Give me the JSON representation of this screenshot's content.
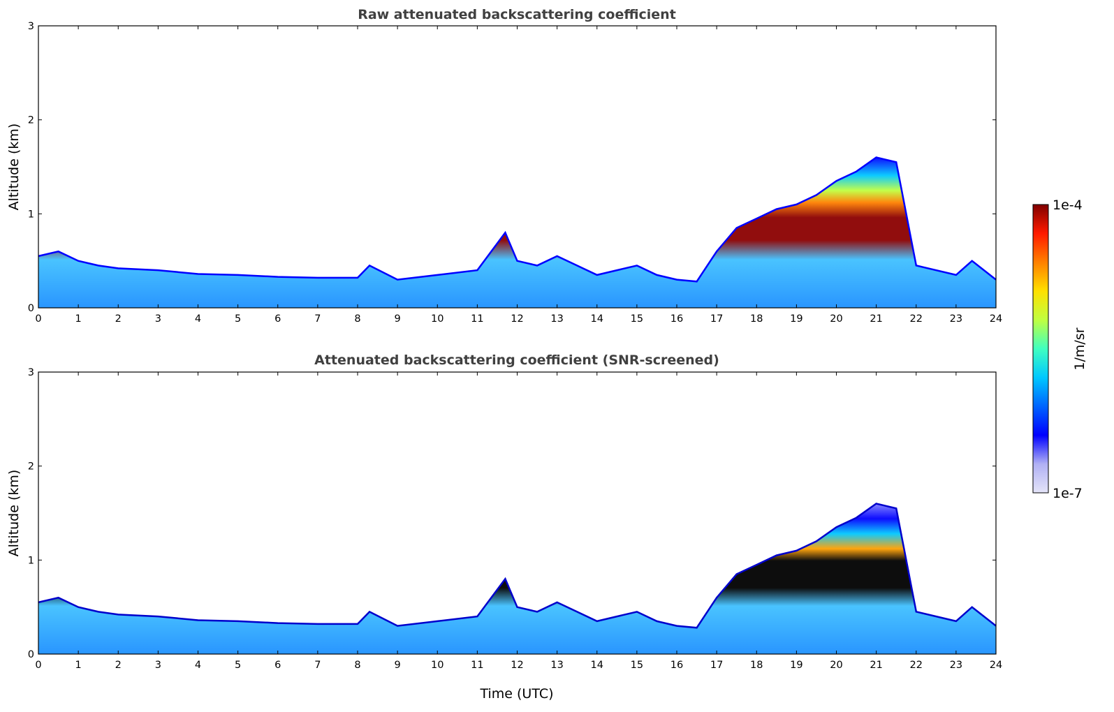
{
  "chart_data": [
    {
      "type": "heatmap",
      "title": "Raw attenuated backscattering coefficient",
      "xlabel": "",
      "ylabel": "Altitude (km)",
      "xlim": [
        0,
        24
      ],
      "ylim": [
        0,
        3
      ],
      "xticks": [
        "0",
        "1",
        "2",
        "3",
        "4",
        "5",
        "6",
        "7",
        "8",
        "9",
        "10",
        "11",
        "12",
        "13",
        "14",
        "15",
        "16",
        "17",
        "18",
        "19",
        "20",
        "21",
        "22",
        "23",
        "24"
      ],
      "yticks": [
        "0",
        "1",
        "2",
        "3"
      ],
      "layer_top_km": {
        "time_utc": [
          0,
          0.5,
          1,
          1.5,
          2,
          3,
          4,
          5,
          6,
          7,
          8,
          8.3,
          9,
          10,
          11,
          11.7,
          12,
          12.5,
          13,
          13.5,
          14,
          14.5,
          15,
          15.5,
          16,
          16.5,
          17,
          17.5,
          18,
          18.5,
          19,
          19.5,
          20,
          20.5,
          21,
          21.5,
          22,
          23,
          23.4,
          24
        ],
        "altitude_km": [
          0.55,
          0.6,
          0.5,
          0.45,
          0.42,
          0.4,
          0.36,
          0.35,
          0.33,
          0.32,
          0.32,
          0.45,
          0.3,
          0.35,
          0.4,
          0.8,
          0.5,
          0.45,
          0.55,
          0.45,
          0.35,
          0.4,
          0.45,
          0.35,
          0.3,
          0.28,
          0.6,
          0.85,
          0.95,
          1.05,
          1.1,
          1.2,
          1.35,
          1.45,
          1.6,
          1.55,
          0.45,
          0.35,
          0.5,
          0.3
        ]
      }
    },
    {
      "type": "heatmap",
      "title": "Attenuated backscattering coefficient (SNR-screened)",
      "xlabel": "Time (UTC)",
      "ylabel": "Altitude (km)",
      "xlim": [
        0,
        24
      ],
      "ylim": [
        0,
        3
      ],
      "xticks": [
        "0",
        "1",
        "2",
        "3",
        "4",
        "5",
        "6",
        "7",
        "8",
        "9",
        "10",
        "11",
        "12",
        "13",
        "14",
        "15",
        "16",
        "17",
        "18",
        "19",
        "20",
        "21",
        "22",
        "23",
        "24"
      ],
      "yticks": [
        "0",
        "1",
        "2",
        "3"
      ],
      "layer_top_km": {
        "time_utc": [
          0,
          0.5,
          1,
          1.5,
          2,
          3,
          4,
          5,
          6,
          7,
          8,
          8.3,
          9,
          10,
          11,
          11.7,
          12,
          12.5,
          13,
          13.5,
          14,
          14.5,
          15,
          15.5,
          16,
          16.5,
          17,
          17.5,
          18,
          18.5,
          19,
          19.5,
          20,
          20.5,
          21,
          21.5,
          22,
          23,
          23.4,
          24
        ],
        "altitude_km": [
          0.55,
          0.6,
          0.5,
          0.45,
          0.42,
          0.4,
          0.36,
          0.35,
          0.33,
          0.32,
          0.32,
          0.45,
          0.3,
          0.35,
          0.4,
          0.8,
          0.5,
          0.45,
          0.55,
          0.45,
          0.35,
          0.4,
          0.45,
          0.35,
          0.3,
          0.28,
          0.6,
          0.85,
          0.95,
          1.05,
          1.1,
          1.2,
          1.35,
          1.45,
          1.6,
          1.55,
          0.45,
          0.35,
          0.5,
          0.3
        ]
      }
    }
  ],
  "colorbar": {
    "label": "1/m/sr",
    "max_label": "1e-4",
    "min_label": "1e-7",
    "colormap": "jet",
    "colors": [
      "#e4e4f8",
      "#b0b0f4",
      "#0000ff",
      "#0064ff",
      "#00c8ff",
      "#40ffc0",
      "#c0ff40",
      "#ffe000",
      "#ff8000",
      "#ff1a00",
      "#800000"
    ]
  }
}
